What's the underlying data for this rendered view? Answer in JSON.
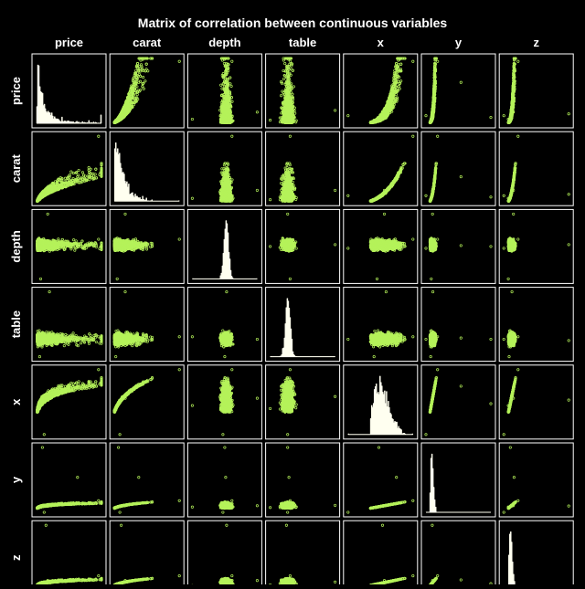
{
  "chart_data": {
    "type": "scatter",
    "kind": "scatterplot-matrix",
    "title": "Matrix of correlation between continuous variables",
    "variables": [
      "price",
      "carat",
      "depth",
      "table",
      "x",
      "y",
      "z"
    ],
    "diagonal": "histogram",
    "off_diagonal": "scatter",
    "axes_tick_labels": false,
    "grid": false,
    "legend": "none",
    "colors": {
      "background": "#000000",
      "panel_border": "#ffffff",
      "points": "#b5f25a",
      "histogram_fill": "#fffff0",
      "text": "#ffffff"
    },
    "ranges": {
      "price": [
        326,
        18823
      ],
      "carat": [
        0.2,
        5.01
      ],
      "depth": [
        43,
        79
      ],
      "table": [
        43,
        95
      ],
      "x": [
        0,
        10.74
      ],
      "y": [
        0,
        58.9
      ],
      "z": [
        0,
        31.8
      ]
    },
    "sample_points": {
      "price": [
        326,
        554,
        950,
        1400,
        2401,
        3500,
        4800,
        6200,
        7800,
        9500,
        11500,
        13500,
        15500,
        17500,
        18823
      ],
      "carat": [
        0.2,
        0.3,
        0.41,
        0.52,
        0.72,
        0.9,
        1.01,
        1.1,
        1.25,
        1.5,
        1.7,
        2.0,
        2.2,
        2.5,
        3.01
      ],
      "depth": [
        61.5,
        59.8,
        62.4,
        63.3,
        61.9,
        62.8,
        60.4,
        61.0,
        62.0,
        64.0,
        58.5,
        61.3,
        62.6,
        60.8,
        63.1
      ],
      "table": [
        55,
        61,
        58,
        56,
        57,
        54,
        59,
        57,
        56,
        58,
        60,
        55,
        57,
        56,
        58
      ],
      "x": [
        3.95,
        4.3,
        4.75,
        5.1,
        5.75,
        6.15,
        6.4,
        6.6,
        6.9,
        7.35,
        7.7,
        8.1,
        8.35,
        8.75,
        9.25
      ],
      "y": [
        3.98,
        4.33,
        4.78,
        5.12,
        5.79,
        6.18,
        6.42,
        6.62,
        6.93,
        7.38,
        7.72,
        8.12,
        8.38,
        8.78,
        9.28
      ],
      "z": [
        2.43,
        2.6,
        2.95,
        3.18,
        3.58,
        3.82,
        3.98,
        4.05,
        4.26,
        4.52,
        4.76,
        5.02,
        5.15,
        5.43,
        5.71
      ]
    }
  }
}
